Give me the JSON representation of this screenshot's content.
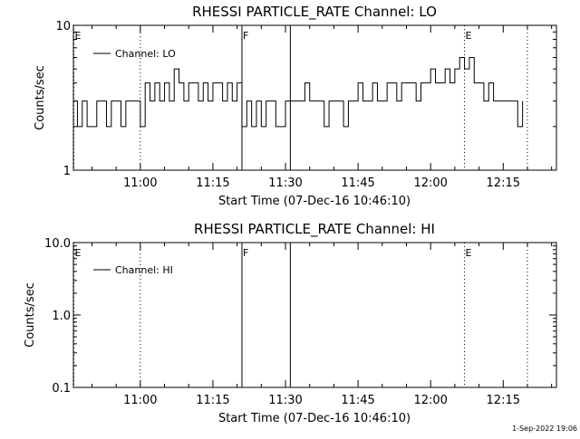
{
  "footer_timestamp": "1-Sep-2022 19:06",
  "chart_data": [
    {
      "type": "line",
      "title": "RHESSI PARTICLE_RATE Channel: LO",
      "xlabel": "Start Time (07-Dec-16 10:46:10)",
      "ylabel": "Counts/sec",
      "yscale": "log",
      "ylim": [
        1,
        10
      ],
      "ytick_labels": [
        "1",
        "10"
      ],
      "ytick_values": [
        1,
        10
      ],
      "xlim": [
        "10:46:10",
        "12:26:00"
      ],
      "xtick_labels": [
        "11:00",
        "11:15",
        "11:30",
        "11:45",
        "12:00",
        "12:15"
      ],
      "xtick_values": [
        "11:00",
        "11:15",
        "11:30",
        "11:45",
        "12:00",
        "12:15"
      ],
      "legend": {
        "entries": [
          "Channel: LO"
        ],
        "location": "upper-left"
      },
      "markers": [
        {
          "time": "10:46:10",
          "label": "E",
          "style": "dotted"
        },
        {
          "time": "11:00",
          "label": "",
          "style": "dotted"
        },
        {
          "time": "11:21",
          "label": "F",
          "style": "solid"
        },
        {
          "time": "11:31",
          "label": "",
          "style": "solid"
        },
        {
          "time": "12:07",
          "label": "E",
          "style": "dotted"
        },
        {
          "time": "12:20",
          "label": "",
          "style": "dotted"
        }
      ],
      "series": [
        {
          "name": "Channel: LO",
          "x": [
            "10:46:10",
            "10:47",
            "10:48",
            "10:49",
            "10:50",
            "10:51",
            "10:52",
            "10:53",
            "10:54",
            "10:55",
            "10:56",
            "10:57",
            "10:58",
            "10:59",
            "11:00",
            "11:01",
            "11:02",
            "11:03",
            "11:04",
            "11:05",
            "11:06",
            "11:07",
            "11:08",
            "11:09",
            "11:10",
            "11:11",
            "11:12",
            "11:13",
            "11:14",
            "11:15",
            "11:16",
            "11:17",
            "11:18",
            "11:19",
            "11:20",
            "11:21",
            "11:22",
            "11:23",
            "11:24",
            "11:25",
            "11:26",
            "11:27",
            "11:28",
            "11:29",
            "11:30",
            "11:31",
            "11:32",
            "11:33",
            "11:34",
            "11:35",
            "11:36",
            "11:37",
            "11:38",
            "11:39",
            "11:40",
            "11:41",
            "11:42",
            "11:43",
            "11:44",
            "11:45",
            "11:46",
            "11:47",
            "11:48",
            "11:49",
            "11:50",
            "11:51",
            "11:52",
            "11:53",
            "11:54",
            "11:55",
            "11:56",
            "11:57",
            "11:58",
            "11:59",
            "12:00",
            "12:01",
            "12:02",
            "12:03",
            "12:04",
            "12:05",
            "12:06",
            "12:07",
            "12:08",
            "12:09",
            "12:10",
            "12:11",
            "12:12",
            "12:13",
            "12:14",
            "12:15",
            "12:16",
            "12:17",
            "12:18",
            "12:19"
          ],
          "y": [
            3,
            2,
            3,
            2,
            2,
            3,
            3,
            2,
            3,
            3,
            2,
            3,
            3,
            3,
            2,
            4,
            3,
            4,
            3,
            4,
            3,
            5,
            4,
            3,
            4,
            4,
            3,
            4,
            3,
            4,
            4,
            3,
            4,
            3,
            4,
            2,
            3,
            2,
            3,
            2,
            3,
            3,
            2,
            2,
            3,
            3,
            3,
            3,
            4,
            3,
            3,
            3,
            2,
            3,
            3,
            3,
            2,
            3,
            3,
            4,
            3,
            3,
            4,
            3,
            3,
            4,
            4,
            3,
            4,
            4,
            4,
            3,
            4,
            4,
            5,
            4,
            4,
            5,
            4,
            5,
            6,
            5,
            6,
            4,
            4,
            3,
            4,
            3,
            3,
            3,
            3,
            3,
            2,
            3
          ]
        }
      ]
    },
    {
      "type": "line",
      "title": "RHESSI PARTICLE_RATE Channel: HI",
      "xlabel": "Start Time (07-Dec-16 10:46:10)",
      "ylabel": "Counts/sec",
      "yscale": "log",
      "ylim": [
        0.1,
        10
      ],
      "ytick_labels": [
        "0.1",
        "1.0",
        "10.0"
      ],
      "ytick_values": [
        0.1,
        1,
        10
      ],
      "xlim": [
        "10:46:10",
        "12:26:00"
      ],
      "xtick_labels": [
        "11:00",
        "11:15",
        "11:30",
        "11:45",
        "12:00",
        "12:15"
      ],
      "xtick_values": [
        "11:00",
        "11:15",
        "11:30",
        "11:45",
        "12:00",
        "12:15"
      ],
      "legend": {
        "entries": [
          "Channel: HI"
        ],
        "location": "upper-left"
      },
      "markers": [
        {
          "time": "10:46:10",
          "label": "E",
          "style": "dotted"
        },
        {
          "time": "11:00",
          "label": "",
          "style": "dotted"
        },
        {
          "time": "11:21",
          "label": "F",
          "style": "solid"
        },
        {
          "time": "11:31",
          "label": "",
          "style": "solid"
        },
        {
          "time": "12:07",
          "label": "E",
          "style": "dotted"
        },
        {
          "time": "12:20",
          "label": "",
          "style": "dotted"
        }
      ],
      "series": [
        {
          "name": "Channel: HI",
          "x": [],
          "y": []
        }
      ]
    }
  ]
}
